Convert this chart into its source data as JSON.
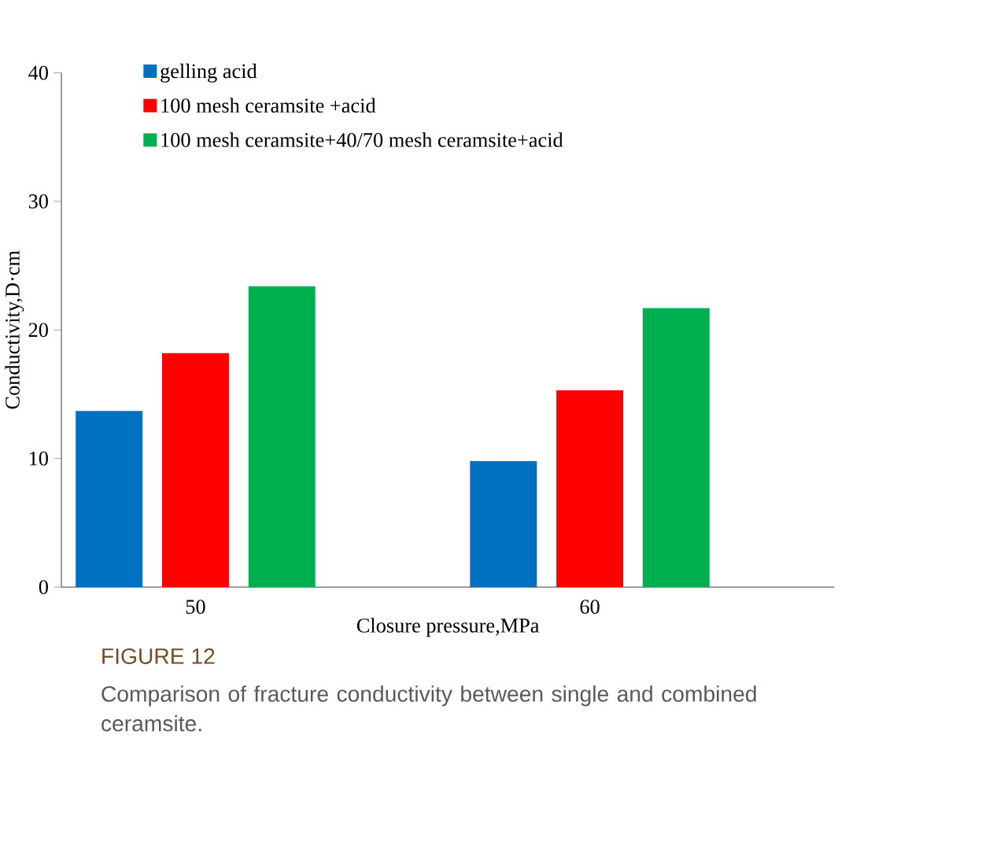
{
  "chart_data": {
    "type": "bar",
    "xlabel": "Closure pressure,MPa",
    "ylabel": "Conductivity,D·cm",
    "categories": [
      "50",
      "60"
    ],
    "series": [
      {
        "name": "gelling acid",
        "color": "#0070c0",
        "values": [
          13.7,
          9.8
        ]
      },
      {
        "name": "100 mesh ceramsite +acid",
        "color": "#ff0000",
        "values": [
          18.2,
          15.3
        ]
      },
      {
        "name": "100 mesh ceramsite+40/70 mesh ceramsite+acid",
        "color": "#00b050",
        "values": [
          23.4,
          21.7
        ]
      }
    ],
    "ylim": [
      0,
      40
    ],
    "yticks": [
      0,
      10,
      20,
      30,
      40
    ],
    "grid": false,
    "legend": "top left",
    "annotations": [
      "FIGURE 12",
      "Comparison of fracture conductivity between single and combined ceramsite."
    ]
  }
}
